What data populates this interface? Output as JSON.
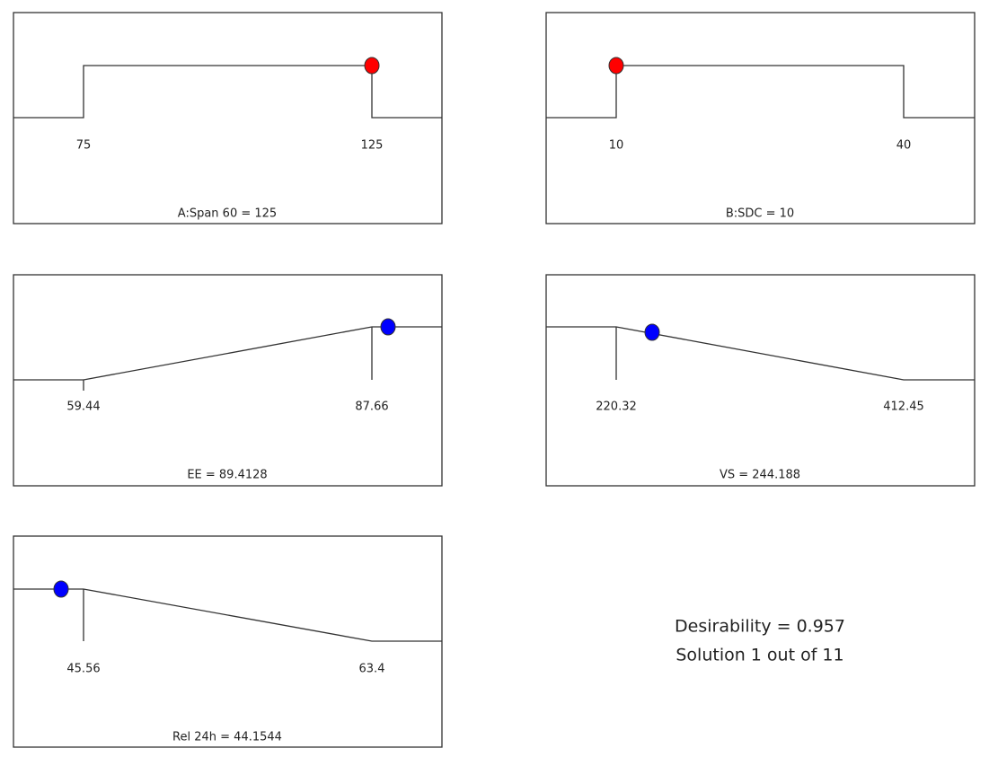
{
  "panels": [
    {
      "low": "75",
      "high": "125",
      "caption": "A:Span 60 = 125"
    },
    {
      "low": "10",
      "high": "40",
      "caption": "B:SDC = 10"
    },
    {
      "low": "59.44",
      "high": "87.66",
      "caption": "EE = 89.4128"
    },
    {
      "low": "220.32",
      "high": "412.45",
      "caption": "VS = 244.188"
    },
    {
      "low": "45.56",
      "high": "63.4",
      "caption": "Rel 24h = 44.1544"
    }
  ],
  "summary": {
    "desirability": "Desirability = 0.957",
    "solution": "Solution 1 out of 11"
  }
}
